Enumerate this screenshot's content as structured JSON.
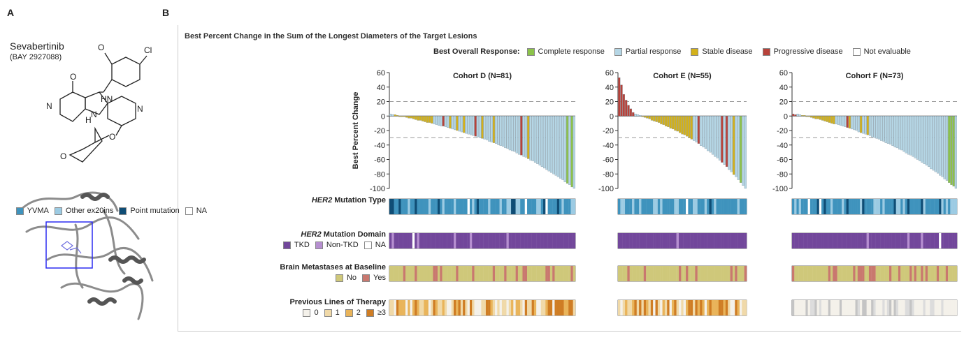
{
  "panels": {
    "a_label": "A",
    "b_label": "B"
  },
  "drug": {
    "name": "Sevabertinib",
    "code": "(BAY 2927088)"
  },
  "structure_labels": [
    "O",
    "Cl",
    "HN",
    "H",
    "N",
    "N",
    "N",
    "O",
    "O",
    "O"
  ],
  "colors": {
    "complete": "#8cc34a",
    "partial": "#b5d6e5",
    "stable": "#d3b11a",
    "progressive": "#b8423a",
    "not_evaluable": "#ffffff",
    "yvma": "#3f93bd",
    "other_ex20ins": "#9ccbe3",
    "point_mutation": "#0f4d75",
    "na": "#ffffff",
    "tkd": "#72479b",
    "non_tkd": "#b68fd0",
    "brain_no": "#cfc87a",
    "brain_yes": "#c9786f",
    "lot0": "#f4f1ea",
    "lot1": "#f0d9a8",
    "lot2": "#e9b45a",
    "lot3": "#cf7d24"
  },
  "chart_data": {
    "type": "bar",
    "title": "Best Percent Change in the Sum of the Longest Diameters of the Target Lesions",
    "ylabel": "Best Percent Change",
    "ylim": [
      -100,
      60
    ],
    "yticks": [
      60,
      40,
      20,
      0,
      -20,
      -40,
      -60,
      -80,
      -100
    ],
    "reference_lines": [
      20,
      -30
    ],
    "legend_title": "Best Overall Response:",
    "legend": [
      "Complete response",
      "Partial response",
      "Stable disease",
      "Progressive disease",
      "Not evaluable"
    ],
    "cohorts": [
      {
        "name": "Cohort D (N=81)",
        "n": 81,
        "waterfall_start": 3,
        "waterfall_end": -100,
        "progressive_bars": [],
        "stable_positions": [
          2,
          3,
          4,
          5,
          6,
          7,
          8,
          9,
          10,
          11,
          12,
          13,
          14,
          15,
          16,
          17,
          18,
          26,
          29,
          32,
          40,
          45,
          60
        ],
        "progressive_positions": [
          23,
          37,
          57
        ],
        "complete_positions": [
          77,
          79
        ]
      },
      {
        "name": "Cohort E (N=55)",
        "n": 55,
        "waterfall_start": 53,
        "waterfall_end": -100,
        "progressive_bars": [
          53,
          43,
          30,
          22,
          15,
          10,
          5
        ],
        "stable_positions": [
          10,
          11,
          12,
          13,
          14,
          15,
          16,
          17,
          18,
          19,
          20,
          21,
          22,
          23,
          24,
          25,
          26,
          27,
          28,
          29,
          30,
          31,
          49
        ],
        "progressive_positions": [
          0,
          1,
          2,
          3,
          4,
          5,
          6,
          34,
          44,
          46
        ],
        "complete_positions": [
          52
        ]
      },
      {
        "name": "Cohort F (N=73)",
        "n": 73,
        "waterfall_start": 3,
        "waterfall_end": -100,
        "progressive_bars": [
          3,
          2
        ],
        "stable_positions": [
          4,
          5,
          6,
          7,
          8,
          9,
          10,
          11,
          12,
          13,
          14,
          15,
          16,
          17,
          18,
          25,
          30,
          33
        ],
        "progressive_positions": [
          0,
          1,
          24
        ],
        "complete_positions": [
          69,
          70,
          71
        ]
      }
    ],
    "tracks": [
      {
        "title_prefix": "HER2",
        "title_suffix": " Mutation Type",
        "legend": [
          "YVMA",
          "Other ex20ins",
          "Point mutation",
          "NA"
        ]
      },
      {
        "title_prefix": "HER2",
        "title_suffix": " Mutation Domain",
        "legend": [
          "TKD",
          "Non-TKD",
          "NA"
        ]
      },
      {
        "title_prefix": "",
        "title_suffix": "Brain Metastases at Baseline",
        "legend": [
          "No",
          "Yes"
        ]
      },
      {
        "title_prefix": "",
        "title_suffix": "Previous Lines of Therapy",
        "legend": [
          "0",
          "1",
          "2",
          "≥3"
        ]
      }
    ]
  }
}
